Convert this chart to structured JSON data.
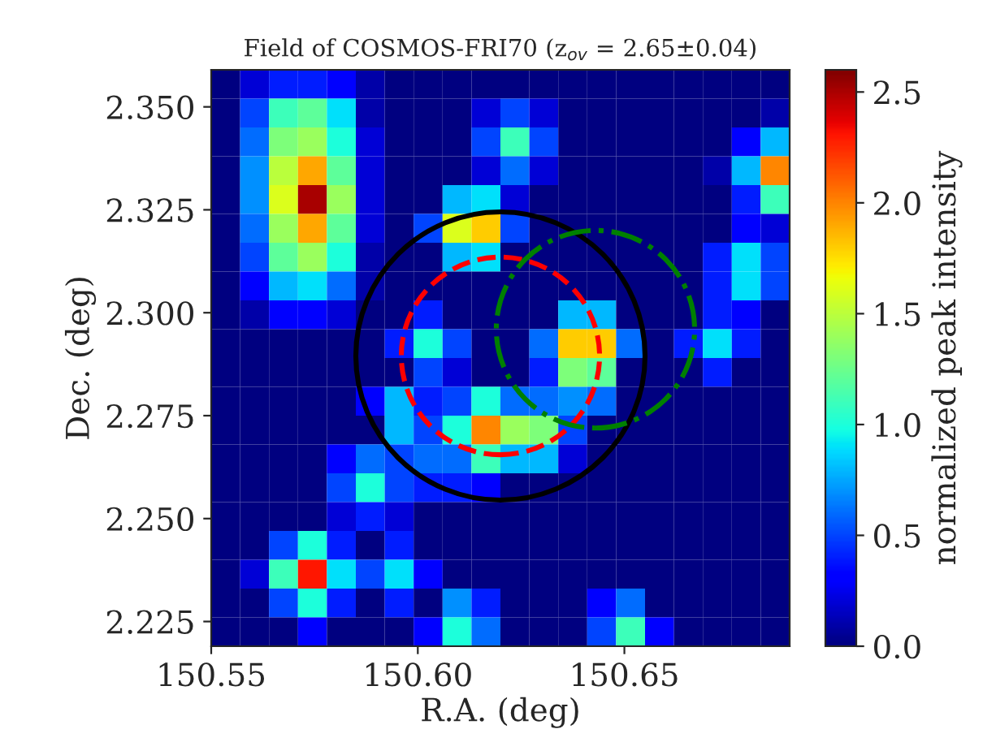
{
  "chart_data": {
    "type": "heatmap",
    "title": "Field of COSMOS-FRI70 (z$_{ov}$ = 2.65±0.04)",
    "xlabel": "R.A. (deg)",
    "ylabel": "Dec. (deg)",
    "clabel": "normalized peak intensity",
    "xlim": [
      150.55,
      150.69
    ],
    "ylim": [
      2.219,
      2.359
    ],
    "xticks": [
      {
        "value": 150.55,
        "label": "150.55"
      },
      {
        "value": 150.6,
        "label": "150.60"
      },
      {
        "value": 150.65,
        "label": "150.65"
      }
    ],
    "yticks": [
      2.225,
      {
        "value": 2.25,
        "label": "2.250"
      },
      2.275,
      {
        "value": 2.3,
        "label": "2.300"
      },
      2.325,
      {
        "value": 2.35,
        "label": "2.350"
      }
    ],
    "clim": [
      0,
      2.6
    ],
    "cticks": [
      {
        "value": 0,
        "label": "0.0"
      },
      {
        "value": 0.5,
        "label": "0.5"
      },
      {
        "value": 1,
        "label": "1.0"
      },
      {
        "value": 1.5,
        "label": "1.5"
      },
      {
        "value": 2,
        "label": "2.0"
      },
      {
        "value": 2.5,
        "label": "2.5"
      }
    ],
    "cells": [
      [
        0,
        0.2,
        0.4,
        0.4,
        0.3,
        0.1,
        0,
        0,
        0,
        0,
        0,
        0,
        0,
        0,
        0,
        0,
        0,
        0,
        0,
        0
      ],
      [
        0,
        0.5,
        1.1,
        1.2,
        0.9,
        0.1,
        0,
        0,
        0,
        0.2,
        0.5,
        0.2,
        0,
        0,
        0,
        0,
        0,
        0,
        0,
        0.1
      ],
      [
        0,
        0.6,
        1.3,
        1.4,
        1.0,
        0.2,
        0,
        0,
        0,
        0.5,
        1.1,
        0.5,
        0,
        0,
        0,
        0,
        0,
        0,
        0.3,
        0.8
      ],
      [
        0,
        0.7,
        1.5,
        1.9,
        1.2,
        0.2,
        0,
        0,
        0,
        0.2,
        0.6,
        0.2,
        0,
        0,
        0,
        0,
        0,
        0.1,
        0.8,
        2.0
      ],
      [
        0,
        0.7,
        1.6,
        2.5,
        1.4,
        0.2,
        0,
        0,
        0.8,
        0.9,
        0.2,
        0,
        0,
        0,
        0,
        0,
        0,
        0,
        0.4,
        1.1
      ],
      [
        0,
        0.6,
        1.4,
        1.9,
        1.2,
        0.2,
        0,
        0.5,
        1.6,
        1.8,
        0.5,
        0,
        0,
        0,
        0,
        0,
        0,
        0,
        0.3,
        0.2
      ],
      [
        0,
        0.5,
        1.2,
        1.4,
        1.0,
        0.1,
        0,
        0,
        0.8,
        0.9,
        0,
        0,
        0,
        0,
        0,
        0,
        0,
        0.4,
        0.9,
        0.5
      ],
      [
        0,
        0.3,
        0.8,
        0.9,
        0.6,
        0.1,
        0,
        0,
        0,
        0,
        0,
        0,
        0,
        0,
        0,
        0,
        0,
        0.4,
        0.9,
        0.5
      ],
      [
        0,
        0.1,
        0.3,
        0.3,
        0.2,
        0,
        0,
        0.4,
        0,
        0,
        0,
        0,
        0.8,
        0.8,
        0,
        0,
        0,
        0.4,
        0.3,
        0
      ],
      [
        0,
        0,
        0,
        0,
        0,
        0,
        0.4,
        1.0,
        0.5,
        0,
        0,
        0.6,
        1.8,
        1.8,
        0.6,
        0,
        0.4,
        0.9,
        0.4,
        0
      ],
      [
        0,
        0,
        0,
        0,
        0,
        0,
        0,
        0.5,
        0.2,
        0,
        0,
        0.4,
        1.3,
        1.2,
        0,
        0,
        0,
        0.4,
        0,
        0
      ],
      [
        0,
        0,
        0,
        0,
        0,
        0.3,
        0.8,
        0.4,
        0.5,
        1.0,
        0.6,
        0.6,
        0.7,
        0.6,
        0,
        0,
        0,
        0,
        0,
        0
      ],
      [
        0,
        0,
        0,
        0,
        0,
        0,
        0.8,
        0.5,
        1.0,
        2.0,
        1.4,
        1.3,
        0.5,
        0,
        0,
        0,
        0,
        0,
        0,
        0
      ],
      [
        0,
        0,
        0,
        0,
        0.3,
        0.6,
        0.5,
        0.6,
        0.6,
        1.1,
        0.8,
        0.8,
        0.2,
        0,
        0,
        0,
        0,
        0,
        0,
        0
      ],
      [
        0,
        0,
        0,
        0,
        0.5,
        1.0,
        0.5,
        0.4,
        0.4,
        0.3,
        0,
        0,
        0,
        0,
        0,
        0,
        0,
        0,
        0,
        0
      ],
      [
        0,
        0,
        0,
        0,
        0.2,
        0.4,
        0.2,
        0,
        0,
        0,
        0,
        0,
        0,
        0,
        0,
        0,
        0,
        0,
        0,
        0
      ],
      [
        0,
        0,
        0.5,
        1.0,
        0.4,
        0,
        0.4,
        0,
        0,
        0,
        0,
        0,
        0,
        0,
        0,
        0,
        0,
        0,
        0,
        0
      ],
      [
        0,
        0.2,
        1.1,
        2.3,
        0.9,
        0.5,
        0.9,
        0.3,
        0,
        0,
        0,
        0,
        0,
        0,
        0,
        0,
        0,
        0,
        0,
        0
      ],
      [
        0,
        0,
        0.5,
        1.0,
        0.4,
        0,
        0.4,
        0,
        0.7,
        0.4,
        0,
        0,
        0,
        0.3,
        0.6,
        0,
        0,
        0,
        0,
        0
      ],
      [
        0,
        0,
        0,
        0.3,
        0,
        0,
        0,
        0.3,
        1.0,
        0.6,
        0,
        0,
        0,
        0.5,
        1.1,
        0.3,
        0,
        0,
        0,
        0
      ]
    ]
  }
}
